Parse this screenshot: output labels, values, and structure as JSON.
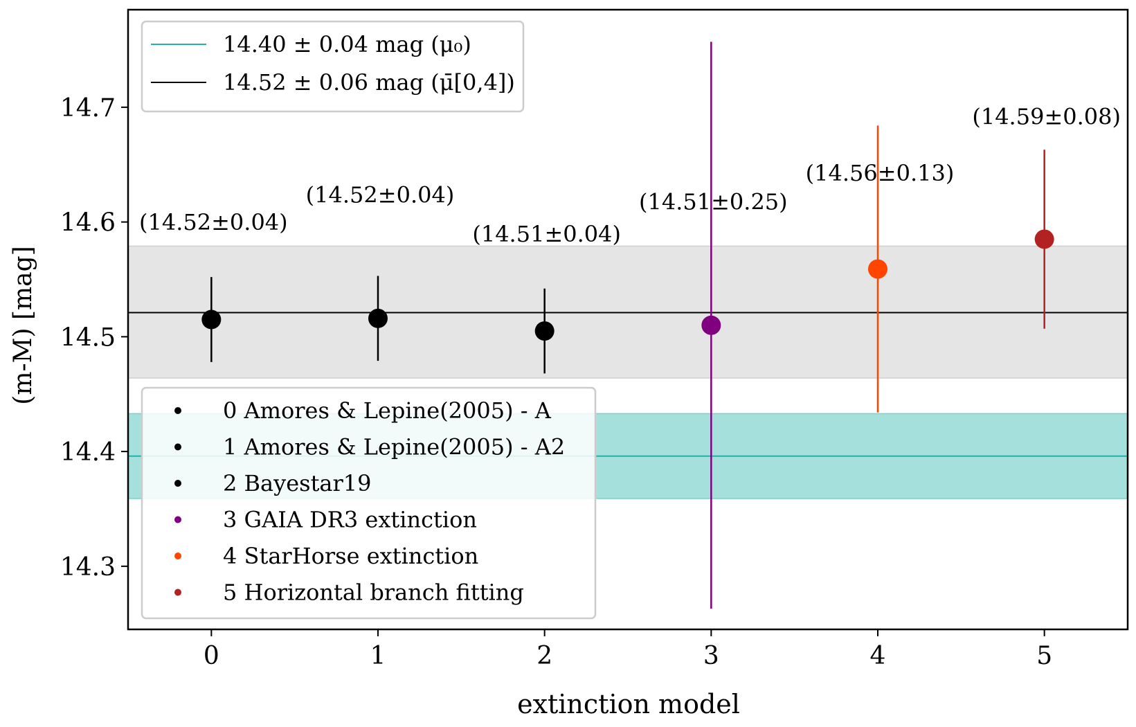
{
  "chart_data": {
    "type": "scatter",
    "xlabel": "extinction model",
    "ylabel": "(m-M) [mag]",
    "xlim": [
      -0.5,
      5.5
    ],
    "ylim": [
      14.245,
      14.785
    ],
    "x_ticks": [
      0,
      1,
      2,
      3,
      4,
      5
    ],
    "y_ticks": [
      14.3,
      14.4,
      14.5,
      14.6,
      14.7
    ],
    "x_tick_labels": [
      "0",
      "1",
      "2",
      "3",
      "4",
      "5"
    ],
    "y_tick_labels": [
      "14.3",
      "14.4",
      "14.5",
      "14.6",
      "14.7"
    ],
    "grid": false,
    "points": [
      {
        "x": 0,
        "y": 14.515,
        "err": 0.037,
        "color": "#000000",
        "label": "(14.52±0.04)",
        "label_y": 14.593,
        "legend": "0 Amores & Lepine(2005) - A"
      },
      {
        "x": 1,
        "y": 14.516,
        "err": 0.037,
        "color": "#000000",
        "label": "(14.52±0.04)",
        "label_y": 14.617,
        "legend": "1 Amores & Lepine(2005) - A2"
      },
      {
        "x": 2,
        "y": 14.505,
        "err": 0.037,
        "color": "#000000",
        "label": "(14.51±0.04)",
        "label_y": 14.583,
        "legend": "2 Bayestar19"
      },
      {
        "x": 3,
        "y": 14.51,
        "err": 0.247,
        "color": "#800080",
        "label": "(14.51±0.25)",
        "label_y": 14.611,
        "legend": "3 GAIA DR3 extinction"
      },
      {
        "x": 4,
        "y": 14.559,
        "err": 0.125,
        "color": "#ff4500",
        "label": "(14.56±0.13)",
        "label_y": 14.636,
        "legend": "4 StarHorse extinction"
      },
      {
        "x": 5,
        "y": 14.585,
        "err": 0.078,
        "color": "#b22222",
        "label": "(14.59±0.08)",
        "label_y": 14.685,
        "legend": "5 Horizontal branch fitting"
      }
    ],
    "lines": [
      {
        "y": 14.396,
        "band": [
          14.359,
          14.433
        ],
        "color": "#20b2aa",
        "band_color": "#a6e0dd",
        "legend": "14.40 ± 0.04 mag (μ₀)"
      },
      {
        "y": 14.521,
        "band": [
          14.464,
          14.579
        ],
        "color": "#000000",
        "band_color": "#e5e5e5",
        "legend": "14.52 ± 0.06 mag (μ̄[0,4])"
      }
    ],
    "legend_placement": [
      "upper left",
      "lower left"
    ]
  }
}
